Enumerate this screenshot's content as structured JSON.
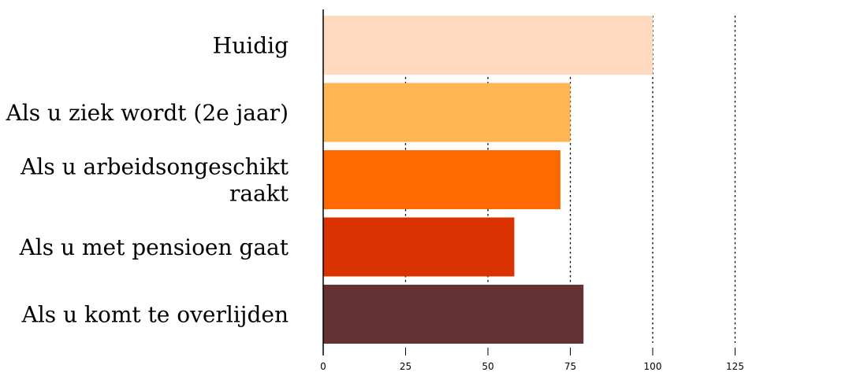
{
  "chart_data": {
    "type": "bar",
    "orientation": "horizontal",
    "categories": [
      [
        "Huidig"
      ],
      [
        "Als u ziek wordt (2e jaar)"
      ],
      [
        "Als u arbeidsongeschikt",
        "raakt"
      ],
      [
        "Als u met pensioen gaat"
      ],
      [
        "Als u komt te overlijden"
      ]
    ],
    "values": [
      100,
      75,
      72,
      58,
      79
    ],
    "colors": [
      "#ffdac0",
      "#ffb553",
      "#ff6a00",
      "#da3200",
      "#643232"
    ],
    "xlim": [
      0,
      125
    ],
    "xticks": [
      0,
      25,
      50,
      75,
      100,
      125
    ],
    "tick_labels": [
      "0",
      "25",
      "50",
      "75",
      "100",
      "125"
    ],
    "grid": "vertical dotted",
    "title": "",
    "xlabel": "",
    "ylabel": ""
  }
}
